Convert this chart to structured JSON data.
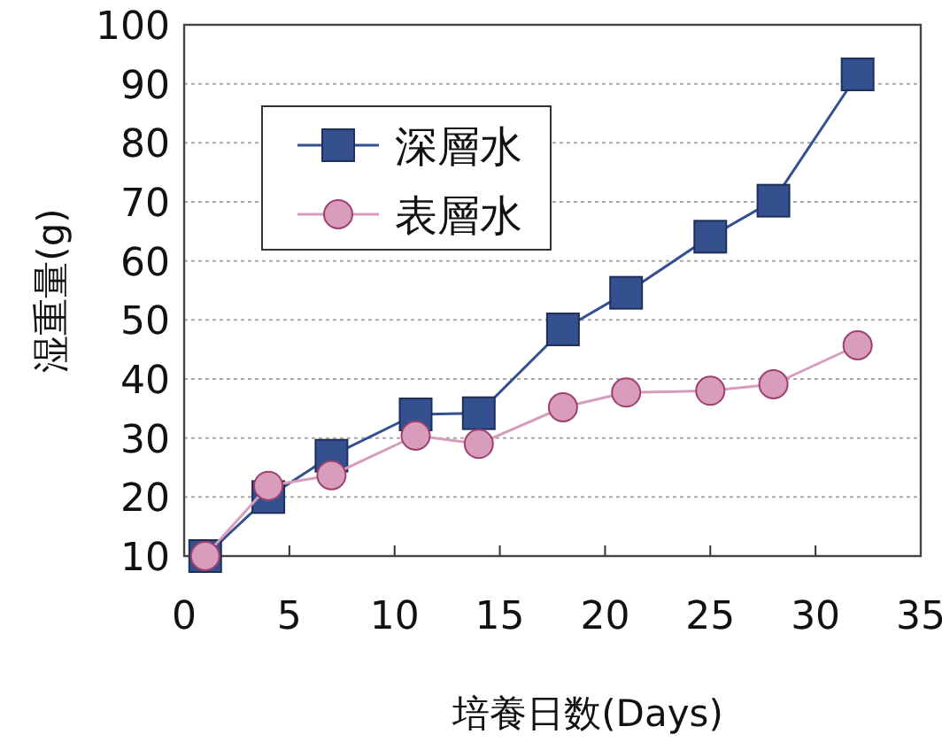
{
  "chart_data": {
    "type": "line",
    "xlabel": "培養日数(Days)",
    "ylabel": "湿重量(g)",
    "xlim": [
      0,
      35
    ],
    "xticks": [
      0,
      5,
      10,
      15,
      20,
      25,
      30,
      35
    ],
    "ylim": [
      10,
      100
    ],
    "yticks": [
      10,
      20,
      30,
      40,
      50,
      60,
      70,
      80,
      90,
      100
    ],
    "grid": "y",
    "legend": "top left",
    "series": [
      {
        "name": "深層水",
        "color": "#34508f",
        "marker": "square",
        "x": [
          1,
          4,
          7,
          11,
          14,
          18,
          21,
          25,
          28,
          32
        ],
        "values": [
          10,
          20,
          27,
          34,
          34.2,
          48.4,
          54.6,
          64.1,
          70.2,
          91.6
        ]
      },
      {
        "name": "表層水",
        "color": "#d89cbc",
        "marker": "circle",
        "x": [
          1,
          4,
          7,
          11,
          14,
          18,
          21,
          25,
          28,
          32
        ],
        "values": [
          10,
          21.9,
          23.7,
          30.4,
          29,
          35.2,
          37.7,
          38,
          39.1,
          45.7
        ]
      }
    ]
  }
}
